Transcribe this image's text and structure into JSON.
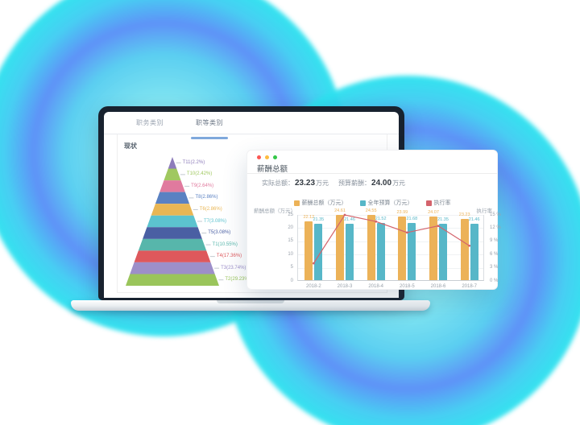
{
  "laptop": {
    "tabs": [
      {
        "label": "职务类别",
        "active": false
      },
      {
        "label": "职等类别",
        "active": true
      }
    ]
  },
  "card": {
    "window_dots": [
      "#fc5753",
      "#fdbc40",
      "#34c748"
    ],
    "title": "薪酬总额",
    "stats": [
      {
        "label": "实际总额：",
        "value": "23.23",
        "unit": "万元"
      },
      {
        "label": "预算薪酬：",
        "value": "24.00",
        "unit": "万元"
      }
    ]
  },
  "colors": {
    "bar_orange": "#ecb258",
    "bar_teal": "#57b7c8",
    "line_red": "#d4636c",
    "tab_underline": "#7fa8dc"
  },
  "chart_data": [
    {
      "type": "pyramid-funnel",
      "title": "现状",
      "labels": [
        "T11(2.2%)",
        "T10(2.42%)",
        "T9(2.64%)",
        "T8(2.86%)",
        "T6(2.86%)",
        "T7(3.08%)",
        "T5(3.08%)",
        "T1(10.55%)",
        "T4(17.36%)",
        "T3(23.74%)",
        "T2(29.23%)"
      ],
      "values": [
        2.2,
        2.42,
        2.64,
        2.86,
        2.86,
        3.08,
        3.08,
        10.55,
        17.36,
        23.74,
        29.23
      ],
      "colors": [
        "#8d7cba",
        "#a0c860",
        "#e07a9e",
        "#5a81c2",
        "#e9b654",
        "#5cc3cf",
        "#4a5fa3",
        "#57b6ab",
        "#de585c",
        "#9d8fc9",
        "#9ac55b"
      ]
    },
    {
      "type": "bar+line",
      "categories": [
        "2018-2",
        "2018-3",
        "2018-4",
        "2018-5",
        "2018-6",
        "2018-7"
      ],
      "series": [
        {
          "name": "薪酬总额（万元）",
          "type": "bar",
          "color": "#ecb258",
          "values": [
            22.12,
            24.61,
            24.55,
            23.99,
            24.07,
            23.23
          ]
        },
        {
          "name": "全年预算（万元）",
          "type": "bar",
          "color": "#57b7c8",
          "values": [
            21.35,
            21.46,
            21.52,
            21.68,
            21.35,
            21.46
          ]
        },
        {
          "name": "执行率",
          "type": "line",
          "color": "#d4636c",
          "axis": "right",
          "values": [
            4,
            15,
            13.5,
            11,
            12.5,
            8
          ]
        }
      ],
      "left_axis": {
        "label": "薪酬总额（万元）",
        "ticks": [
          "25",
          "20",
          "15",
          "10",
          "5",
          "0"
        ],
        "max": 25
      },
      "right_axis": {
        "label": "执行率",
        "ticks": [
          "15 %",
          "12 %",
          "9 %",
          "6 %",
          "3 %",
          "0 %"
        ],
        "max": 15
      }
    }
  ]
}
